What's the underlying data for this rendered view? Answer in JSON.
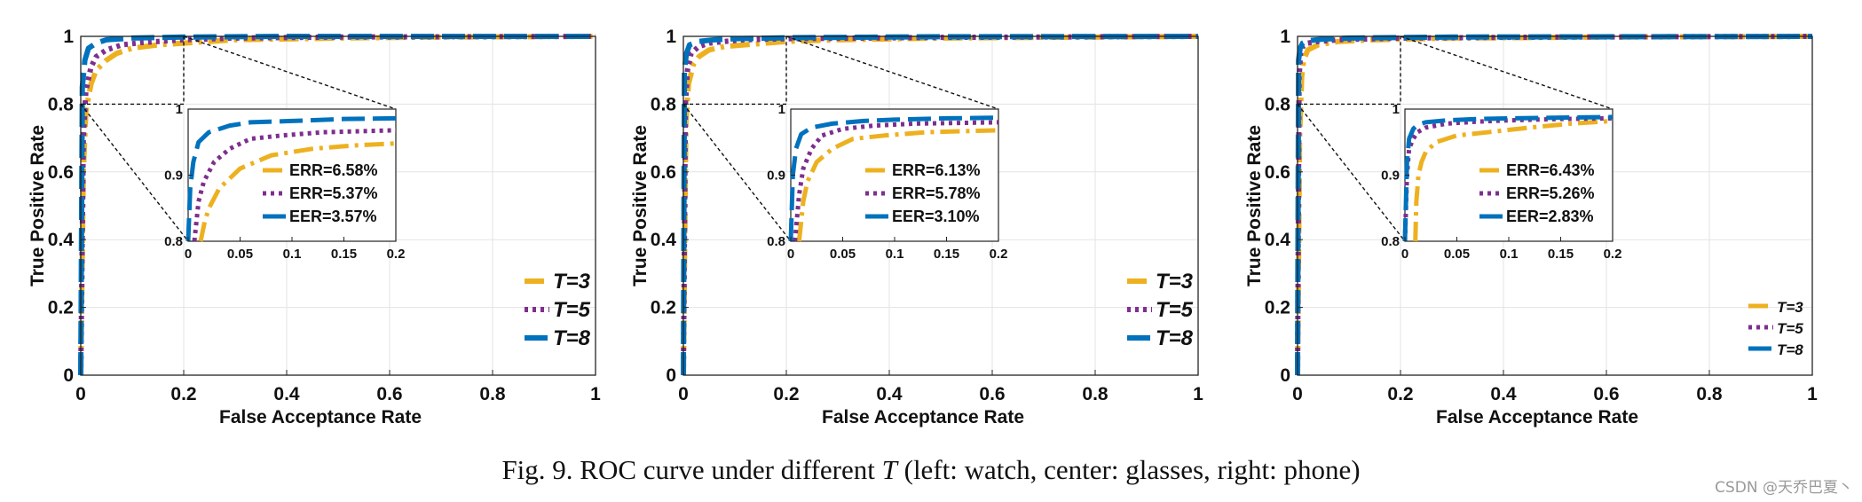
{
  "figure": {
    "caption_prefix": "Fig. 9.  ROC curve under different ",
    "caption_var": "T",
    "caption_suffix": " (left: watch, center: glasses, right: phone)",
    "watermark": "CSDN @天乔巴夏丶"
  },
  "colors": {
    "T3": "#edb120",
    "T5": "#7e2f8e",
    "T8": "#0072bd"
  },
  "chart_data": [
    {
      "type": "line",
      "panel": "watch",
      "xlabel": "False Acceptance Rate",
      "ylabel": "True Positive Rate",
      "xlim": [
        0,
        1
      ],
      "ylim": [
        0,
        1
      ],
      "xticks": [
        "0",
        "0.2",
        "0.4",
        "0.6",
        "0.8",
        "1"
      ],
      "yticks": [
        "0",
        "0.2",
        "0.4",
        "0.6",
        "0.8",
        "1"
      ],
      "grid": true,
      "legend_position": "bottom-right",
      "series": [
        {
          "name": "T=3",
          "style": "dashdot",
          "x": [
            0,
            0.005,
            0.01,
            0.02,
            0.03,
            0.05,
            0.07,
            0.1,
            0.15,
            0.2,
            0.3,
            0.5,
            0.7,
            1.0
          ],
          "y": [
            0,
            0.6,
            0.78,
            0.86,
            0.9,
            0.93,
            0.95,
            0.965,
            0.975,
            0.98,
            0.99,
            0.995,
            0.998,
            1.0
          ]
        },
        {
          "name": "T=5",
          "style": "dotted",
          "x": [
            0,
            0.005,
            0.01,
            0.02,
            0.03,
            0.05,
            0.08,
            0.12,
            0.2,
            0.3,
            0.5,
            1.0
          ],
          "y": [
            0,
            0.7,
            0.84,
            0.91,
            0.94,
            0.96,
            0.975,
            0.982,
            0.99,
            0.995,
            0.998,
            1.0
          ]
        },
        {
          "name": "T=8",
          "style": "dashed",
          "x": [
            0,
            0.003,
            0.008,
            0.015,
            0.03,
            0.05,
            0.1,
            0.2,
            0.4,
            1.0
          ],
          "y": [
            0,
            0.85,
            0.93,
            0.965,
            0.98,
            0.99,
            0.995,
            0.998,
            1.0,
            1.0
          ]
        }
      ],
      "inset": {
        "xlim": [
          0,
          0.2
        ],
        "ylim": [
          0.8,
          1
        ],
        "xticks": [
          "0",
          "0.05",
          "0.1",
          "0.15",
          "0.2"
        ],
        "yticks": [
          "0.8",
          "0.9",
          "1"
        ],
        "legend": [
          "ERR=6.58%",
          "ERR=5.37%",
          "EER=3.57%"
        ],
        "series": [
          {
            "name": "T=3",
            "x": [
              0.012,
              0.016,
              0.02,
              0.03,
              0.05,
              0.08,
              0.12,
              0.16,
              0.2
            ],
            "y": [
              0.8,
              0.83,
              0.85,
              0.88,
              0.91,
              0.93,
              0.94,
              0.945,
              0.948
            ]
          },
          {
            "name": "T=5",
            "x": [
              0.006,
              0.01,
              0.015,
              0.025,
              0.04,
              0.06,
              0.09,
              0.13,
              0.2
            ],
            "y": [
              0.8,
              0.86,
              0.89,
              0.92,
              0.94,
              0.955,
              0.96,
              0.965,
              0.968
            ]
          },
          {
            "name": "T=8",
            "x": [
              0,
              0.002,
              0.005,
              0.01,
              0.02,
              0.04,
              0.06,
              0.1,
              0.15,
              0.2
            ],
            "y": [
              0.8,
              0.88,
              0.92,
              0.95,
              0.965,
              0.975,
              0.98,
              0.982,
              0.985,
              0.986
            ]
          }
        ]
      }
    },
    {
      "type": "line",
      "panel": "glasses",
      "xlabel": "False Acceptance Rate",
      "ylabel": "True Positive Rate",
      "xlim": [
        0,
        1
      ],
      "ylim": [
        0,
        1
      ],
      "xticks": [
        "0",
        "0.2",
        "0.4",
        "0.6",
        "0.8",
        "1"
      ],
      "yticks": [
        "0",
        "0.2",
        "0.4",
        "0.6",
        "0.8",
        "1"
      ],
      "grid": true,
      "legend_position": "bottom-right",
      "series": [
        {
          "name": "T=3",
          "style": "dashdot",
          "x": [
            0,
            0.005,
            0.01,
            0.02,
            0.03,
            0.05,
            0.08,
            0.12,
            0.2,
            0.3,
            0.5,
            1.0
          ],
          "y": [
            0,
            0.75,
            0.86,
            0.92,
            0.94,
            0.96,
            0.97,
            0.975,
            0.985,
            0.99,
            0.995,
            1.0
          ]
        },
        {
          "name": "T=5",
          "style": "dotted",
          "x": [
            0,
            0.004,
            0.008,
            0.015,
            0.03,
            0.05,
            0.08,
            0.12,
            0.2,
            0.5,
            1.0
          ],
          "y": [
            0,
            0.8,
            0.9,
            0.95,
            0.97,
            0.98,
            0.985,
            0.99,
            0.993,
            0.997,
            1.0
          ]
        },
        {
          "name": "T=8",
          "style": "dashed",
          "x": [
            0,
            0.002,
            0.006,
            0.012,
            0.03,
            0.06,
            0.1,
            0.2,
            0.5,
            1.0
          ],
          "y": [
            0,
            0.9,
            0.95,
            0.975,
            0.985,
            0.99,
            0.993,
            0.996,
            0.999,
            1.0
          ]
        }
      ],
      "inset": {
        "xlim": [
          0,
          0.2
        ],
        "ylim": [
          0.8,
          1
        ],
        "xticks": [
          "0",
          "0.05",
          "0.1",
          "0.15",
          "0.2"
        ],
        "yticks": [
          "0.8",
          "0.9",
          "1"
        ],
        "legend": [
          "ERR=6.13%",
          "ERR=5.78%",
          "EER=3.10%"
        ],
        "series": [
          {
            "name": "T=3",
            "x": [
              0.008,
              0.012,
              0.016,
              0.025,
              0.04,
              0.06,
              0.09,
              0.13,
              0.2
            ],
            "y": [
              0.8,
              0.86,
              0.89,
              0.92,
              0.94,
              0.955,
              0.96,
              0.965,
              0.968
            ]
          },
          {
            "name": "T=5",
            "x": [
              0.004,
              0.008,
              0.012,
              0.02,
              0.03,
              0.05,
              0.08,
              0.12,
              0.2
            ],
            "y": [
              0.8,
              0.87,
              0.91,
              0.94,
              0.96,
              0.97,
              0.975,
              0.978,
              0.98
            ]
          },
          {
            "name": "T=8",
            "x": [
              0,
              0.002,
              0.005,
              0.01,
              0.02,
              0.04,
              0.07,
              0.1,
              0.15,
              0.2
            ],
            "y": [
              0.8,
              0.9,
              0.94,
              0.962,
              0.972,
              0.978,
              0.982,
              0.984,
              0.986,
              0.987
            ]
          }
        ]
      }
    },
    {
      "type": "line",
      "panel": "phone",
      "xlabel": "False Acceptance Rate",
      "ylabel": "True Positive Rate",
      "xlim": [
        0,
        1
      ],
      "ylim": [
        0,
        1
      ],
      "xticks": [
        "0",
        "0.2",
        "0.4",
        "0.6",
        "0.8",
        "1"
      ],
      "yticks": [
        "0",
        "0.2",
        "0.4",
        "0.6",
        "0.8",
        "1"
      ],
      "grid": true,
      "legend_position": "bottom-right",
      "series": [
        {
          "name": "T=3",
          "style": "dashdot",
          "x": [
            0,
            0.004,
            0.008,
            0.012,
            0.02,
            0.04,
            0.08,
            0.15,
            0.3,
            0.6,
            1.0
          ],
          "y": [
            0,
            0.7,
            0.88,
            0.93,
            0.96,
            0.975,
            0.985,
            0.99,
            0.995,
            0.998,
            1.0
          ]
        },
        {
          "name": "T=5",
          "style": "dotted",
          "x": [
            0,
            0.003,
            0.006,
            0.01,
            0.02,
            0.04,
            0.08,
            0.2,
            0.5,
            1.0
          ],
          "y": [
            0,
            0.88,
            0.95,
            0.97,
            0.98,
            0.985,
            0.99,
            0.995,
            0.998,
            1.0
          ]
        },
        {
          "name": "T=8",
          "style": "dashed",
          "x": [
            0,
            0.002,
            0.005,
            0.01,
            0.02,
            0.05,
            0.1,
            0.3,
            1.0
          ],
          "y": [
            0,
            0.93,
            0.965,
            0.98,
            0.987,
            0.992,
            0.995,
            0.998,
            1.0
          ]
        }
      ],
      "inset": {
        "xlim": [
          0,
          0.2
        ],
        "ylim": [
          0.8,
          1
        ],
        "xticks": [
          "0",
          "0.05",
          "0.1",
          "0.15",
          "0.2"
        ],
        "yticks": [
          "0.8",
          "0.9",
          "1"
        ],
        "legend": [
          "ERR=6.43%",
          "ERR=5.26%",
          "EER=2.83%"
        ],
        "series": [
          {
            "name": "T=3",
            "x": [
              0.01,
              0.011,
              0.013,
              0.016,
              0.02,
              0.03,
              0.05,
              0.08,
              0.12,
              0.16,
              0.2
            ],
            "y": [
              0.8,
              0.86,
              0.9,
              0.92,
              0.935,
              0.95,
              0.96,
              0.965,
              0.972,
              0.978,
              0.982
            ]
          },
          {
            "name": "T=5",
            "x": [
              0,
              0.002,
              0.004,
              0.008,
              0.012,
              0.02,
              0.04,
              0.07,
              0.1,
              0.15,
              0.2
            ],
            "y": [
              0.8,
              0.9,
              0.94,
              0.955,
              0.965,
              0.972,
              0.978,
              0.981,
              0.983,
              0.985,
              0.986
            ]
          },
          {
            "name": "T=8",
            "x": [
              0,
              0.002,
              0.004,
              0.008,
              0.012,
              0.02,
              0.04,
              0.07,
              0.1,
              0.15,
              0.2
            ],
            "y": [
              0.8,
              0.92,
              0.955,
              0.97,
              0.976,
              0.98,
              0.983,
              0.985,
              0.986,
              0.987,
              0.988
            ]
          }
        ]
      }
    }
  ]
}
